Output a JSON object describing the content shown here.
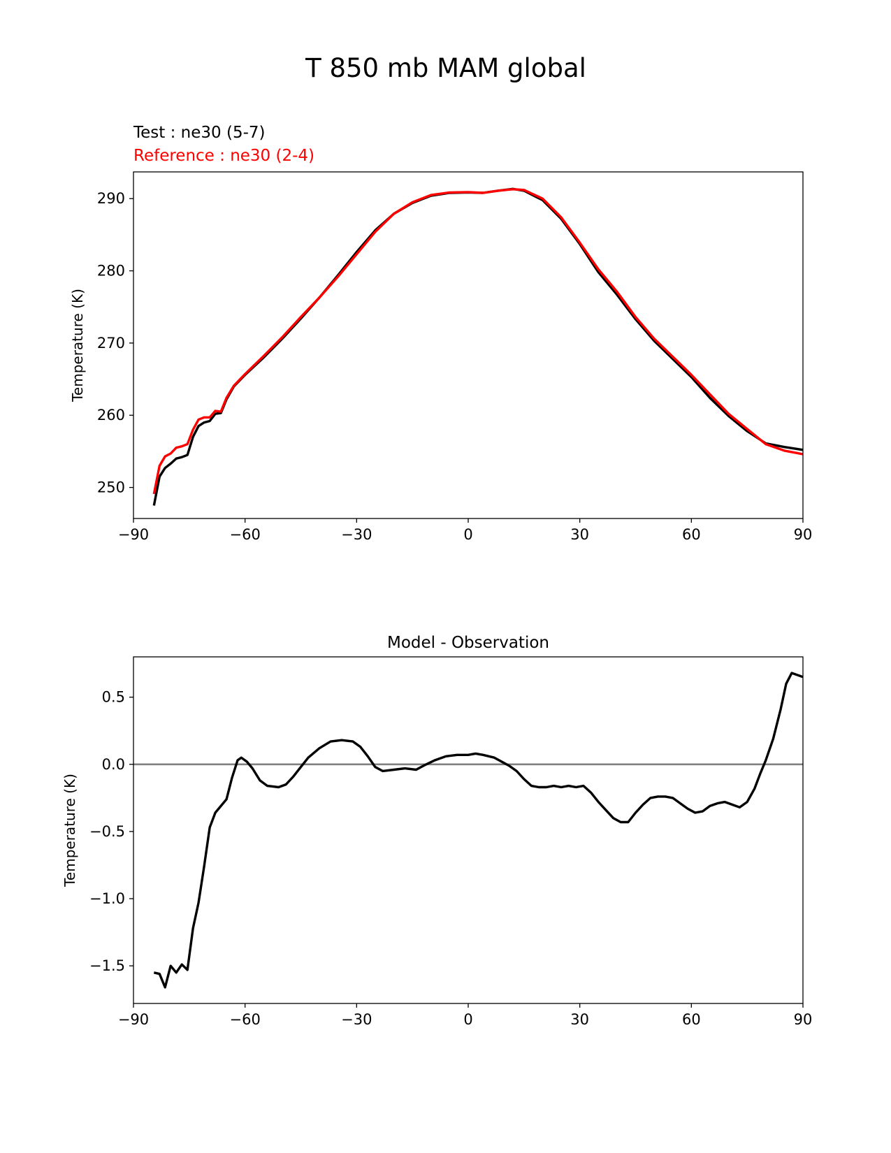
{
  "figure": {
    "title": "T 850 mb MAM global"
  },
  "chart_data": [
    {
      "type": "line",
      "title": "",
      "legend_texts": [
        {
          "text": "Test : ne30 (5-7)",
          "color": "#000000"
        },
        {
          "text": "Reference : ne30 (2-4)",
          "color": "#ff0000"
        }
      ],
      "xlabel": "",
      "ylabel": "Temperature (K)",
      "xlim": [
        -90,
        90
      ],
      "ylim": [
        245.7,
        293.7
      ],
      "xticks": [
        -90,
        -60,
        -30,
        0,
        30,
        60,
        90
      ],
      "xtick_labels": [
        "−90",
        "−60",
        "−30",
        "0",
        "30",
        "60",
        "90"
      ],
      "yticks": [
        250,
        260,
        270,
        280,
        290
      ],
      "ytick_labels": [
        "250",
        "260",
        "270",
        "280",
        "290"
      ],
      "grid": false,
      "series": [
        {
          "name": "Test : ne30 (5-7)",
          "color": "#000000",
          "points": [
            [
              -84.5,
              247.5
            ],
            [
              -83,
              251.5
            ],
            [
              -81.5,
              252.7
            ],
            [
              -80,
              253.3
            ],
            [
              -78.5,
              254
            ],
            [
              -77,
              254.2
            ],
            [
              -75.5,
              254.5
            ],
            [
              -74,
              257
            ],
            [
              -72.5,
              258.5
            ],
            [
              -71,
              259
            ],
            [
              -69.5,
              259.2
            ],
            [
              -68,
              260.2
            ],
            [
              -66.5,
              260.3
            ],
            [
              -65,
              262.2
            ],
            [
              -63,
              264
            ],
            [
              -60,
              265.6
            ],
            [
              -55,
              268
            ],
            [
              -50,
              270.6
            ],
            [
              -45,
              273.4
            ],
            [
              -40,
              276.3
            ],
            [
              -35,
              279.4
            ],
            [
              -30,
              282.6
            ],
            [
              -25,
              285.6
            ],
            [
              -20,
              287.9
            ],
            [
              -15,
              289.4
            ],
            [
              -10,
              290.4
            ],
            [
              -5,
              290.8
            ],
            [
              0,
              290.85
            ],
            [
              4,
              290.8
            ],
            [
              8,
              291.1
            ],
            [
              12,
              291.35
            ],
            [
              15,
              291.1
            ],
            [
              20,
              289.8
            ],
            [
              25,
              287.2
            ],
            [
              30,
              283.7
            ],
            [
              35,
              279.8
            ],
            [
              40,
              276.7
            ],
            [
              45,
              273.3
            ],
            [
              50,
              270.3
            ],
            [
              55,
              267.8
            ],
            [
              60,
              265.3
            ],
            [
              65,
              262.4
            ],
            [
              70,
              259.9
            ],
            [
              75,
              257.8
            ],
            [
              80,
              256.1
            ],
            [
              85,
              255.6
            ],
            [
              90,
              255.2
            ]
          ]
        },
        {
          "name": "Reference : ne30 (2-4)",
          "color": "#ff0000",
          "points": [
            [
              -84.5,
              249.1
            ],
            [
              -83,
              253
            ],
            [
              -81.5,
              254.3
            ],
            [
              -80,
              254.7
            ],
            [
              -78.5,
              255.5
            ],
            [
              -77,
              255.7
            ],
            [
              -75.5,
              256
            ],
            [
              -74,
              258
            ],
            [
              -72.5,
              259.4
            ],
            [
              -71,
              259.7
            ],
            [
              -69.5,
              259.7
            ],
            [
              -68,
              260.6
            ],
            [
              -66.5,
              260.5
            ],
            [
              -65,
              262.4
            ],
            [
              -63,
              264.1
            ],
            [
              -60,
              265.7
            ],
            [
              -55,
              268.2
            ],
            [
              -50,
              270.8
            ],
            [
              -45,
              273.6
            ],
            [
              -40,
              276.3
            ],
            [
              -35,
              279.2
            ],
            [
              -30,
              282.3
            ],
            [
              -25,
              285.4
            ],
            [
              -20,
              287.9
            ],
            [
              -15,
              289.5
            ],
            [
              -10,
              290.5
            ],
            [
              -5,
              290.85
            ],
            [
              0,
              290.9
            ],
            [
              4,
              290.8
            ],
            [
              8,
              291.1
            ],
            [
              12,
              291.3
            ],
            [
              15,
              291.2
            ],
            [
              20,
              290
            ],
            [
              25,
              287.4
            ],
            [
              30,
              283.9
            ],
            [
              35,
              280.2
            ],
            [
              40,
              277.1
            ],
            [
              45,
              273.6
            ],
            [
              50,
              270.6
            ],
            [
              55,
              268.1
            ],
            [
              60,
              265.6
            ],
            [
              65,
              262.9
            ],
            [
              70,
              260.2
            ],
            [
              75,
              258.1
            ],
            [
              80,
              256
            ],
            [
              85,
              255.1
            ],
            [
              90,
              254.6
            ]
          ]
        }
      ]
    },
    {
      "type": "line",
      "title": "Model - Observation",
      "xlabel": "",
      "ylabel": "Temperature (K)",
      "xlim": [
        -90,
        90
      ],
      "ylim": [
        -1.78,
        0.8
      ],
      "xticks": [
        -90,
        -60,
        -30,
        0,
        30,
        60,
        90
      ],
      "xtick_labels": [
        "−90",
        "−60",
        "−30",
        "0",
        "30",
        "60",
        "90"
      ],
      "yticks": [
        -1.5,
        -1.0,
        -0.5,
        0.0,
        0.5
      ],
      "ytick_labels": [
        "−1.5",
        "−1.0",
        "−0.5",
        "0.0",
        "0.5"
      ],
      "grid": false,
      "zero_line_color": "#808080",
      "series": [
        {
          "color": "#000000",
          "points": [
            [
              -84.5,
              -1.55
            ],
            [
              -83,
              -1.56
            ],
            [
              -81.5,
              -1.66
            ],
            [
              -80,
              -1.5
            ],
            [
              -78.5,
              -1.55
            ],
            [
              -77,
              -1.49
            ],
            [
              -75.5,
              -1.53
            ],
            [
              -74,
              -1.22
            ],
            [
              -72.5,
              -1.03
            ],
            [
              -71,
              -0.76
            ],
            [
              -69.5,
              -0.47
            ],
            [
              -68,
              -0.36
            ],
            [
              -65,
              -0.26
            ],
            [
              -63.5,
              -0.1
            ],
            [
              -62,
              0.03
            ],
            [
              -61,
              0.05
            ],
            [
              -59.5,
              0.02
            ],
            [
              -58,
              -0.03
            ],
            [
              -56,
              -0.12
            ],
            [
              -54,
              -0.16
            ],
            [
              -51,
              -0.17
            ],
            [
              -49,
              -0.15
            ],
            [
              -47,
              -0.09
            ],
            [
              -45,
              -0.02
            ],
            [
              -43,
              0.05
            ],
            [
              -40,
              0.12
            ],
            [
              -37,
              0.17
            ],
            [
              -34,
              0.18
            ],
            [
              -31,
              0.17
            ],
            [
              -29,
              0.13
            ],
            [
              -27,
              0.06
            ],
            [
              -25,
              -0.02
            ],
            [
              -23,
              -0.05
            ],
            [
              -20,
              -0.04
            ],
            [
              -17,
              -0.03
            ],
            [
              -14,
              -0.04
            ],
            [
              -12,
              -0.01
            ],
            [
              -9,
              0.03
            ],
            [
              -6,
              0.06
            ],
            [
              -3,
              0.07
            ],
            [
              0,
              0.07
            ],
            [
              2,
              0.08
            ],
            [
              4,
              0.07
            ],
            [
              7,
              0.05
            ],
            [
              9,
              0.02
            ],
            [
              11,
              -0.01
            ],
            [
              13,
              -0.05
            ],
            [
              15,
              -0.11
            ],
            [
              17,
              -0.16
            ],
            [
              19,
              -0.17
            ],
            [
              21,
              -0.17
            ],
            [
              23,
              -0.16
            ],
            [
              25,
              -0.17
            ],
            [
              27,
              -0.16
            ],
            [
              29,
              -0.17
            ],
            [
              31,
              -0.16
            ],
            [
              33,
              -0.21
            ],
            [
              35,
              -0.28
            ],
            [
              37,
              -0.34
            ],
            [
              39,
              -0.4
            ],
            [
              41,
              -0.43
            ],
            [
              43,
              -0.43
            ],
            [
              45,
              -0.36
            ],
            [
              47,
              -0.3
            ],
            [
              49,
              -0.25
            ],
            [
              51,
              -0.24
            ],
            [
              53,
              -0.24
            ],
            [
              55,
              -0.25
            ],
            [
              57,
              -0.29
            ],
            [
              59,
              -0.33
            ],
            [
              61,
              -0.36
            ],
            [
              63,
              -0.35
            ],
            [
              65,
              -0.31
            ],
            [
              67,
              -0.29
            ],
            [
              69,
              -0.28
            ],
            [
              71,
              -0.3
            ],
            [
              73,
              -0.32
            ],
            [
              75,
              -0.28
            ],
            [
              77,
              -0.18
            ],
            [
              78.5,
              -0.07
            ],
            [
              80,
              0.03
            ],
            [
              82,
              0.19
            ],
            [
              84,
              0.41
            ],
            [
              85.5,
              0.6
            ],
            [
              87,
              0.68
            ],
            [
              89,
              0.66
            ],
            [
              90,
              0.65
            ]
          ]
        }
      ]
    }
  ]
}
